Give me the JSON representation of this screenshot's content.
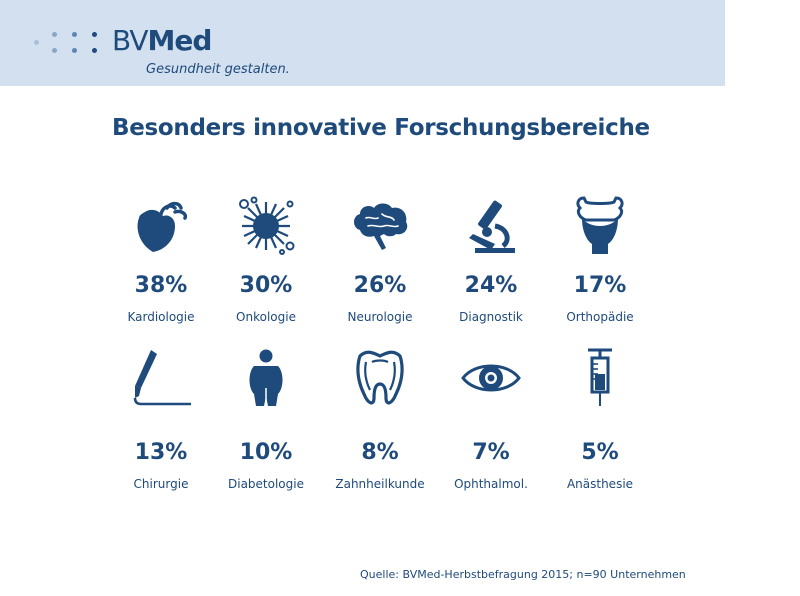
{
  "header": {
    "logo_bv": "BV",
    "logo_med": "Med",
    "tagline": "Gesundheit gestalten.",
    "band_color": "#d3e0ef",
    "brand_color": "#1e4a7c"
  },
  "title": "Besonders innovative Forschungsbereiche",
  "chart_data": {
    "type": "table",
    "title": "Besonders innovative Forschungsbereiche",
    "categories": [
      "Kardiologie",
      "Onkologie",
      "Neurologie",
      "Diagnostik",
      "Orthopädie",
      "Chirurgie",
      "Diabetologie",
      "Zahnheilkunde",
      "Ophthalmol.",
      "Anästhesie"
    ],
    "values": [
      38,
      30,
      26,
      24,
      17,
      13,
      10,
      8,
      7,
      5
    ],
    "unit": "%",
    "items": [
      {
        "label": "Kardiologie",
        "value": "38%",
        "icon": "heart-icon"
      },
      {
        "label": "Onkologie",
        "value": "30%",
        "icon": "tumor-cell-icon"
      },
      {
        "label": "Neurologie",
        "value": "26%",
        "icon": "brain-icon"
      },
      {
        "label": "Diagnostik",
        "value": "24%",
        "icon": "microscope-icon"
      },
      {
        "label": "Orthopädie",
        "value": "17%",
        "icon": "joint-bone-icon"
      },
      {
        "label": "Chirurgie",
        "value": "13%",
        "icon": "scalpel-icon"
      },
      {
        "label": "Diabetologie",
        "value": "10%",
        "icon": "person-icon"
      },
      {
        "label": "Zahnheilkunde",
        "value": "8%",
        "icon": "tooth-icon"
      },
      {
        "label": "Ophthalmol.",
        "value": "7%",
        "icon": "eye-icon"
      },
      {
        "label": "Anästhesie",
        "value": "5%",
        "icon": "syringe-icon"
      }
    ]
  },
  "source": "Quelle: BVMed-Herbstbefragung 2015; n=90 Unternehmen"
}
